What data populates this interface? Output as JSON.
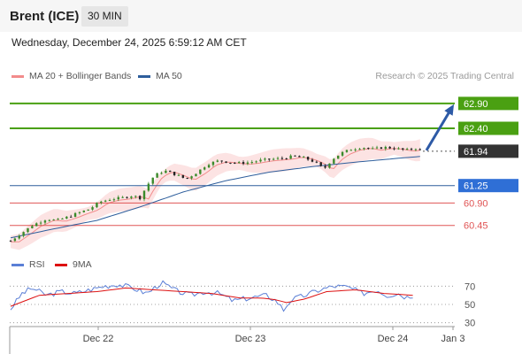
{
  "header": {
    "instrument": "Brent (ICE)",
    "timeframe": "30 MIN"
  },
  "datetime": "Wednesday, December 24, 2025 6:59:12 AM CET",
  "legend": [
    {
      "label": "MA 20 + Bollinger Bands",
      "color": "#f28b8b"
    },
    {
      "label": "MA 50",
      "color": "#2e5e9c"
    }
  ],
  "credit": "Research © 2025 Trading Central",
  "rsi_legend": [
    {
      "label": "RSI",
      "color": "#5b7fd6"
    },
    {
      "label": "9MA",
      "color": "#dd1111"
    }
  ],
  "colors": {
    "resistance": "#4aa012",
    "support": "#e05555",
    "pivot": "#2f6fd6",
    "current": "#333333",
    "arrow": "#2d5aa6"
  },
  "chart_data": [
    {
      "type": "line",
      "subtype": "candlestick",
      "title": "Brent (ICE)",
      "timeframe": "30 MIN",
      "x_ticks": [
        "Dec 22",
        "Dec 23",
        "Dec 24",
        "Jan 3"
      ],
      "ylim": [
        60.0,
        63.2
      ],
      "levels": [
        {
          "value": 62.9,
          "label": "62.90",
          "kind": "resistance"
        },
        {
          "value": 62.4,
          "label": "62.40",
          "kind": "resistance"
        },
        {
          "value": 61.94,
          "label": "61.94",
          "kind": "current"
        },
        {
          "value": 61.25,
          "label": "61.25",
          "kind": "pivot"
        },
        {
          "value": 60.9,
          "label": "60.90",
          "kind": "support"
        },
        {
          "value": 60.45,
          "label": "60.45",
          "kind": "support"
        }
      ],
      "price_path": [
        [
          0,
          60.14
        ],
        [
          8,
          60.3
        ],
        [
          15,
          60.45
        ],
        [
          25,
          60.58
        ],
        [
          32,
          60.55
        ],
        [
          40,
          60.62
        ],
        [
          47,
          60.7
        ],
        [
          55,
          60.78
        ],
        [
          62,
          60.92
        ],
        [
          70,
          60.98
        ],
        [
          77,
          61.0
        ],
        [
          85,
          61.05
        ],
        [
          90,
          61.0
        ],
        [
          95,
          61.25
        ],
        [
          100,
          61.45
        ],
        [
          107,
          61.55
        ],
        [
          115,
          61.47
        ],
        [
          122,
          61.38
        ],
        [
          130,
          61.52
        ],
        [
          137,
          61.68
        ],
        [
          145,
          61.75
        ],
        [
          152,
          61.72
        ],
        [
          160,
          61.7
        ],
        [
          167,
          61.72
        ],
        [
          175,
          61.76
        ],
        [
          182,
          61.78
        ],
        [
          190,
          61.8
        ],
        [
          197,
          61.84
        ],
        [
          205,
          61.8
        ],
        [
          212,
          61.72
        ],
        [
          218,
          61.58
        ],
        [
          224,
          61.78
        ],
        [
          230,
          61.9
        ],
        [
          237,
          61.98
        ],
        [
          245,
          62.02
        ],
        [
          252,
          61.98
        ],
        [
          260,
          62.02
        ],
        [
          267,
          62.0
        ],
        [
          275,
          61.96
        ],
        [
          282,
          62.0
        ],
        [
          287,
          61.94
        ]
      ],
      "ma50_path": [
        [
          0,
          60.2
        ],
        [
          30,
          60.38
        ],
        [
          60,
          60.55
        ],
        [
          90,
          60.82
        ],
        [
          120,
          61.12
        ],
        [
          150,
          61.35
        ],
        [
          180,
          61.52
        ],
        [
          210,
          61.63
        ],
        [
          240,
          61.72
        ],
        [
          270,
          61.8
        ],
        [
          287,
          61.84
        ]
      ],
      "bollinger_width": 0.18,
      "forecast_arrow": {
        "from": 61.94,
        "to": 62.9
      },
      "rsi": {
        "ticks": [
          70,
          50,
          30
        ],
        "ylim": [
          20,
          80
        ],
        "rsi_path": [
          [
            0,
            45
          ],
          [
            8,
            62
          ],
          [
            15,
            68
          ],
          [
            25,
            60
          ],
          [
            35,
            64
          ],
          [
            45,
            62
          ],
          [
            55,
            66
          ],
          [
            65,
            70
          ],
          [
            75,
            72
          ],
          [
            85,
            68
          ],
          [
            95,
            62
          ],
          [
            105,
            74
          ],
          [
            115,
            65
          ],
          [
            125,
            60
          ],
          [
            135,
            64
          ],
          [
            145,
            62
          ],
          [
            155,
            54
          ],
          [
            162,
            56
          ],
          [
            170,
            58
          ],
          [
            178,
            60
          ],
          [
            185,
            54
          ],
          [
            190,
            44
          ],
          [
            195,
            55
          ],
          [
            205,
            60
          ],
          [
            215,
            66
          ],
          [
            225,
            70
          ],
          [
            235,
            69
          ],
          [
            245,
            62
          ],
          [
            255,
            66
          ],
          [
            262,
            60
          ],
          [
            270,
            62
          ],
          [
            275,
            58
          ],
          [
            280,
            60
          ]
        ],
        "ma9_path": [
          [
            0,
            48
          ],
          [
            20,
            60
          ],
          [
            40,
            62
          ],
          [
            60,
            64
          ],
          [
            80,
            68
          ],
          [
            100,
            66
          ],
          [
            120,
            64
          ],
          [
            140,
            62
          ],
          [
            160,
            57
          ],
          [
            175,
            57
          ],
          [
            185,
            55
          ],
          [
            192,
            52
          ],
          [
            205,
            56
          ],
          [
            220,
            64
          ],
          [
            240,
            66
          ],
          [
            260,
            62
          ],
          [
            280,
            60
          ]
        ]
      }
    }
  ]
}
